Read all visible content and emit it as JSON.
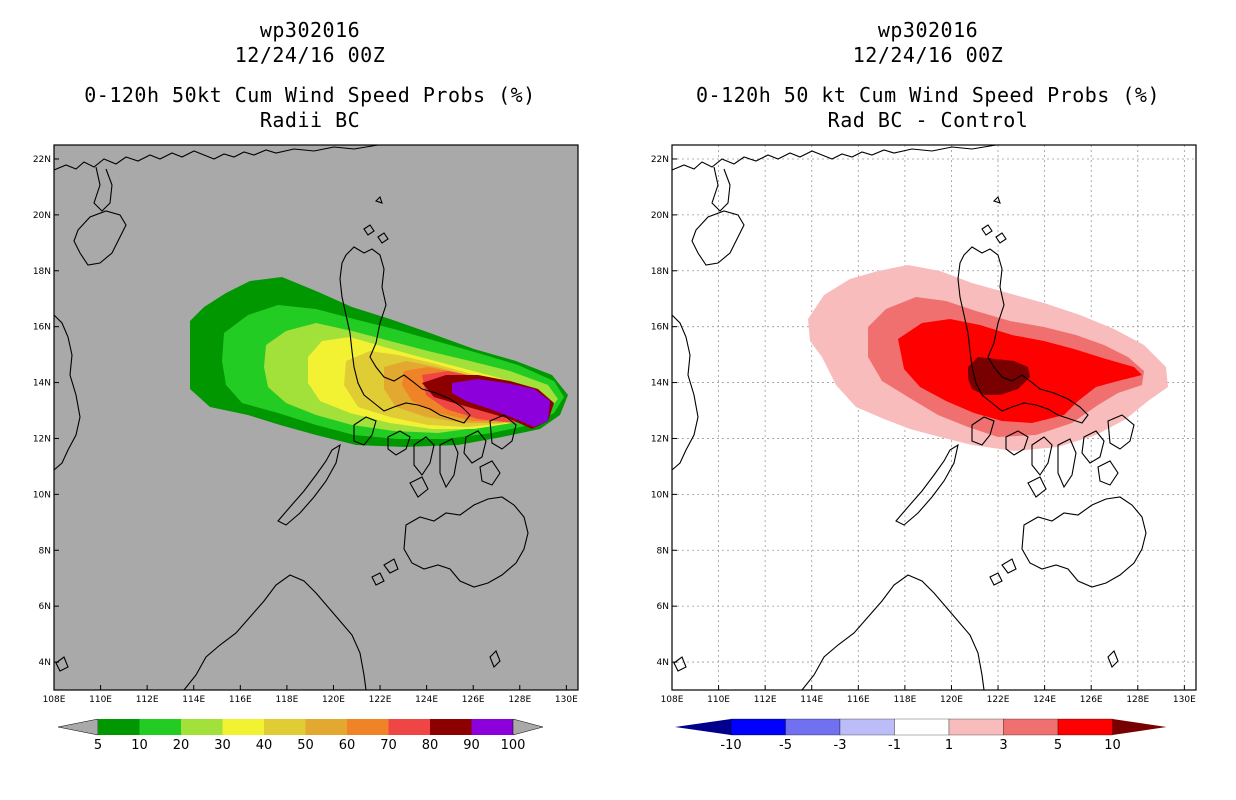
{
  "left_panel": {
    "title_line1": "wp302016",
    "title_line2": "12/24/16 00Z",
    "title_line3": "0-120h 50kt Cum Wind Speed Probs (%)",
    "title_line4": "Radii BC",
    "background_color": "#a9a9a9",
    "colorbar": {
      "labels": [
        "5",
        "10",
        "20",
        "30",
        "40",
        "50",
        "60",
        "70",
        "80",
        "90",
        "100"
      ],
      "colors": [
        "#009700",
        "#22cc22",
        "#a2e03a",
        "#f2f233",
        "#e0cc35",
        "#e2a830",
        "#f08228",
        "#f04545",
        "#8c0000",
        "#8c00dc"
      ],
      "under_color": "#a9a9a9",
      "over_color": "#a9a9a9"
    }
  },
  "right_panel": {
    "title_line1": "wp302016",
    "title_line2": "12/24/16 00Z",
    "title_line3": "0-120h 50 kt Cum Wind Speed Probs (%)",
    "title_line4": "Rad BC - Control",
    "background_color": "#ffffff",
    "colorbar": {
      "labels": [
        "-10",
        "-5",
        "-3",
        "-1",
        "1",
        "3",
        "5",
        "10"
      ],
      "colors": [
        "#0000ff",
        "#7070f0",
        "#bcbcf8",
        "#ffffff",
        "#f8bcbc",
        "#f07070",
        "#ff0000"
      ],
      "under_color": "#00008c",
      "over_color": "#780000"
    }
  },
  "map": {
    "lon_labels": [
      "108E",
      "110E",
      "112E",
      "114E",
      "116E",
      "118E",
      "120E",
      "122E",
      "124E",
      "126E",
      "128E",
      "130E"
    ],
    "lat_labels": [
      "4N",
      "6N",
      "8N",
      "10N",
      "12N",
      "14N",
      "16N",
      "18N",
      "20N",
      "22N"
    ],
    "lon_values": [
      108,
      110,
      112,
      114,
      116,
      118,
      120,
      122,
      124,
      126,
      128,
      130
    ],
    "lat_values": [
      4,
      6,
      8,
      10,
      12,
      14,
      16,
      18,
      20,
      22
    ],
    "lon_range": [
      108,
      130.5
    ],
    "lat_range": [
      3,
      22.5
    ]
  }
}
